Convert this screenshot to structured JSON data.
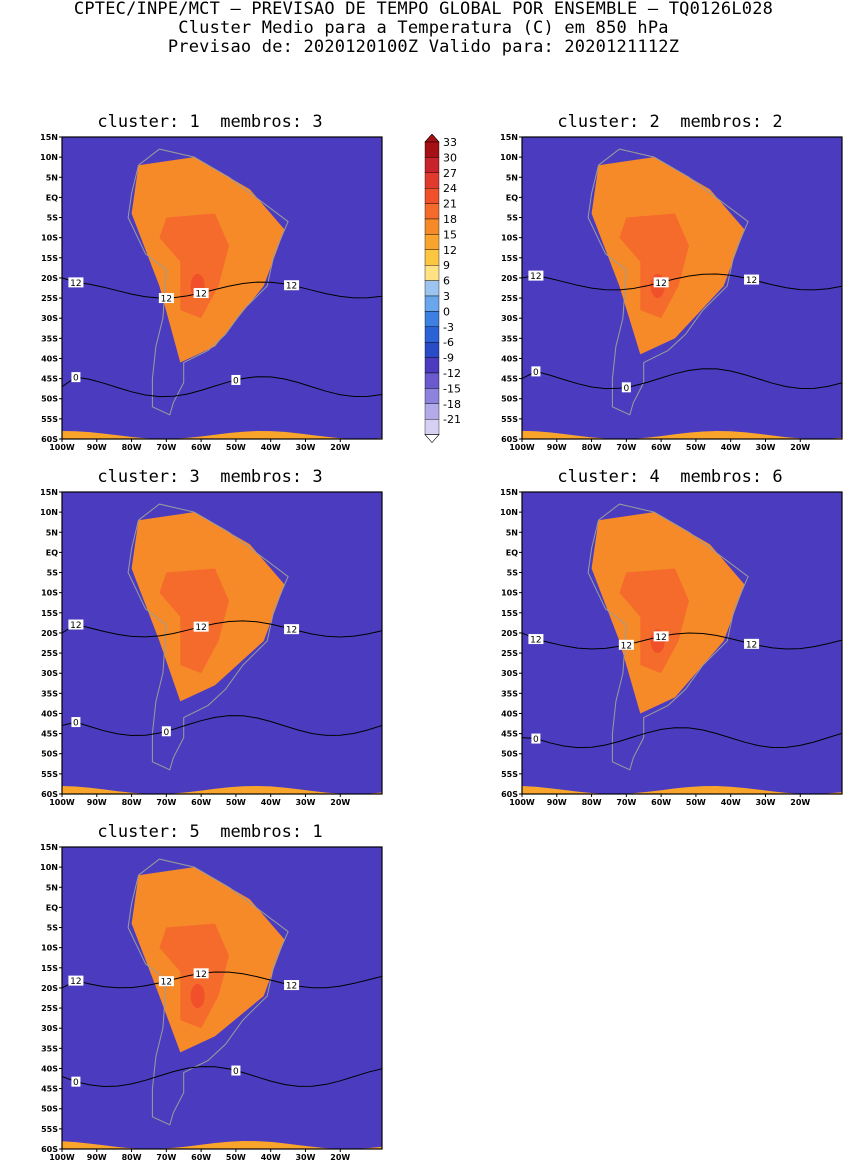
{
  "header": {
    "line1": "CPTEC/INPE/MCT – PREVISAO DE TEMPO GLOBAL POR ENSEMBLE – TQ0126L028",
    "line2": "Cluster Medio para a Temperatura (C) em 850 hPa",
    "line3": "Previsao de: 2020120100Z   Valido para: 2020121112Z"
  },
  "lat_labels": [
    "15N",
    "10N",
    "5N",
    "EQ",
    "5S",
    "10S",
    "15S",
    "20S",
    "25S",
    "30S",
    "35S",
    "40S",
    "45S",
    "50S",
    "55S",
    "60S"
  ],
  "lon_labels": [
    "100W",
    "90W",
    "80W",
    "70W",
    "60W",
    "50W",
    "40W",
    "30W",
    "20W"
  ],
  "colorbar": {
    "levels": [
      "33",
      "30",
      "27",
      "24",
      "21",
      "18",
      "15",
      "12",
      "9",
      "6",
      "3",
      "0",
      "-3",
      "-6",
      "-9",
      "-12",
      "-15",
      "-18",
      "-21"
    ],
    "colors": [
      "#a50f15",
      "#c9232b",
      "#e03a2e",
      "#f0502a",
      "#f56b2c",
      "#f78a28",
      "#f9a52c",
      "#fcc640",
      "#fee283",
      "#9dc4f0",
      "#6aa6ec",
      "#3d7fe2",
      "#2b63d6",
      "#2a4bc8",
      "#4b3cbf",
      "#6a5acd",
      "#8e83dc",
      "#b3aae8",
      "#d6d0f3"
    ]
  },
  "panels": [
    {
      "title": "cluster: 1  membros: 3",
      "contour_labels": [
        "12",
        "12",
        "12",
        "12",
        "0",
        "0"
      ],
      "ridge_lat": -43,
      "warm_core": 1
    },
    {
      "title": "cluster: 2  membros: 2",
      "contour_labels": [
        "12",
        "12",
        "12",
        "0",
        "0"
      ],
      "ridge_lat": -41,
      "warm_core": 1
    },
    {
      "title": "cluster: 3  membros: 3",
      "contour_labels": [
        "12",
        "12",
        "12",
        "0",
        "0"
      ],
      "ridge_lat": -39,
      "warm_core": 0
    },
    {
      "title": "cluster: 4  membros: 6",
      "contour_labels": [
        "12",
        "12",
        "12",
        "12",
        "0"
      ],
      "ridge_lat": -42,
      "warm_core": 1
    },
    {
      "title": "cluster: 5  membros: 1",
      "contour_labels": [
        "12",
        "12",
        "12",
        "12",
        "0",
        "0"
      ],
      "ridge_lat": -38,
      "warm_core": 1
    }
  ]
}
